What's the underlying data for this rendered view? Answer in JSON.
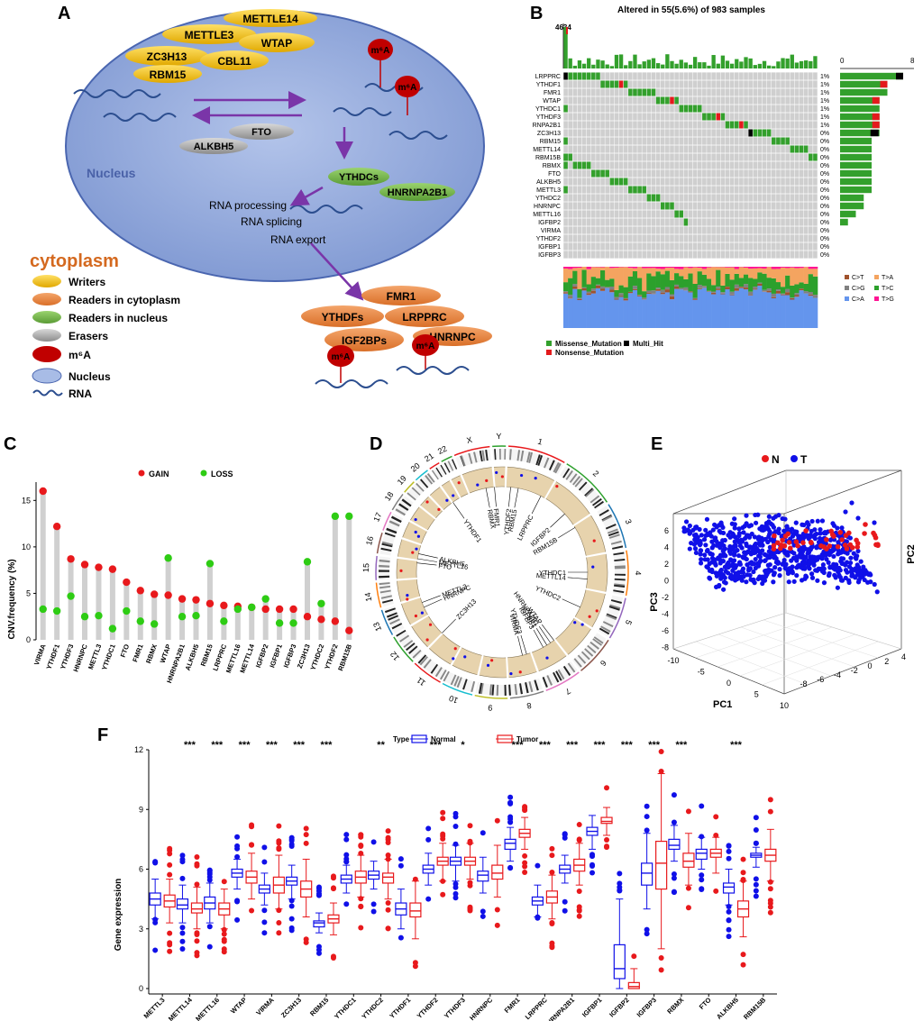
{
  "panels": {
    "a": "A",
    "b": "B",
    "c": "C",
    "d": "D",
    "e": "E",
    "f": "F"
  },
  "panel_a": {
    "writers_ovals": [
      "METTLE14",
      "METTLE3",
      "WTAP",
      "ZC3H13",
      "CBL11",
      "RBM15"
    ],
    "erasers_ovals": [
      "FTO",
      "ALKBH5"
    ],
    "nucleus_readers": [
      "YTHDCs",
      "HNRNPA2B1"
    ],
    "cyto_readers": [
      "FMR1",
      "YTHDFs",
      "LRPPRC",
      "IGF2BPs",
      "HNRNPC"
    ],
    "m6a": "m⁶A",
    "nucleus_label": "Nucleus",
    "cytoplasm_label": "cytoplasm",
    "processes": [
      "RNA processing",
      "RNA splicing",
      "RNA export"
    ],
    "legend": [
      "Writers",
      "Readers in cytoplasm",
      "Readers in nucleus",
      "Erasers",
      "m⁶A",
      "Nucleus",
      "RNA"
    ],
    "colors": {
      "writer": "#f2c010",
      "cyto": "#e8843c",
      "nuc_reader": "#6fb244",
      "eraser": "#a8a8a8",
      "m6a": "#c00000",
      "nucleus": "#8ea7d9",
      "arrow": "#7a35a8",
      "rna": "#2c4e8f",
      "cyto_label": "#d4691f"
    }
  },
  "panel_b": {
    "title": "Altered in 55(5.6%) of 983 samples",
    "top_axis_max": "4634",
    "right_axis": [
      "0",
      "8"
    ],
    "genes": [
      "LRPPRC",
      "YTHDF1",
      "FMR1",
      "WTAP",
      "YTHDC1",
      "YTHDF3",
      "RNPA2B1",
      "ZC3H13",
      "RBM15",
      "METTL14",
      "RBM15B",
      "RBMX",
      "FTO",
      "ALKBH5",
      "METTL3",
      "YTHDC2",
      "HNRNPC",
      "METTL16",
      "IGFBP2",
      "VIRMA",
      "YTHDF2",
      "IGFBP1",
      "IGFBP3"
    ],
    "percents": [
      "1%",
      "1%",
      "1%",
      "1%",
      "1%",
      "1%",
      "1%",
      "0%",
      "0%",
      "0%",
      "0%",
      "0%",
      "0%",
      "0%",
      "0%",
      "0%",
      "0%",
      "0%",
      "0%",
      "0%",
      "0%",
      "0%",
      "0%"
    ],
    "counts": [
      8,
      6,
      6,
      5,
      5,
      5,
      5,
      5,
      4,
      4,
      4,
      4,
      4,
      4,
      4,
      3,
      3,
      2,
      1,
      0,
      0,
      0,
      0
    ],
    "titv_legend": [
      "C>T",
      "T>A",
      "C>G",
      "T>C",
      "C>A",
      "T>G"
    ],
    "titv_colors": [
      "#a0522d",
      "#f4a460",
      "#808080",
      "#2ca02c",
      "#6495ed",
      "#ff1493"
    ],
    "mut_legend": [
      "Missense_Mutation",
      "Nonsense_Mutation",
      "Multi_Hit"
    ],
    "mut_colors": [
      "#33a02c",
      "#e31a1c",
      "#000000"
    ]
  },
  "panel_c": {
    "ylabel": "CNV.frequency (%)",
    "legend": [
      "GAIN",
      "LOSS"
    ],
    "colors": {
      "gain": "#e8191c",
      "loss": "#2ecc14"
    },
    "chart_data": {
      "type": "scatter",
      "categories": [
        "VIRMA",
        "YTHDF1",
        "YTHDF3",
        "HNRNPC",
        "METTL3",
        "YTHDC1",
        "FTO",
        "FMR1",
        "RBMX",
        "WTAP",
        "HNRNPA2B1",
        "ALKBH5",
        "RBM15",
        "LRPPRC",
        "METTL16",
        "METTL14",
        "IGFBP2",
        "IGFBP1",
        "IGFBP3",
        "ZC3H13",
        "YTHDC2",
        "YTHDF2",
        "RBM15B"
      ],
      "series": [
        {
          "name": "GAIN",
          "values": [
            16,
            12.2,
            8.7,
            8.1,
            7.8,
            7.6,
            6.2,
            5.3,
            4.9,
            4.8,
            4.4,
            4.3,
            3.9,
            3.7,
            3.6,
            3.5,
            3.3,
            3.3,
            3.3,
            2.5,
            2.2,
            2.0,
            1.0
          ]
        },
        {
          "name": "LOSS",
          "values": [
            3.3,
            3.1,
            4.7,
            2.5,
            2.6,
            1.2,
            3.1,
            2.0,
            1.7,
            8.8,
            2.5,
            2.6,
            8.2,
            2.0,
            3.3,
            3.5,
            4.4,
            1.8,
            1.8,
            8.4,
            3.9,
            13.3,
            13.3
          ]
        }
      ],
      "ylim": [
        0,
        16
      ],
      "yticks": [
        "0",
        "5",
        "10",
        "15"
      ]
    }
  },
  "panel_d": {
    "chroms": [
      "1",
      "2",
      "3",
      "4",
      "5",
      "6",
      "7",
      "8",
      "9",
      "10",
      "11",
      "12",
      "13",
      "14",
      "15",
      "16",
      "17",
      "18",
      "19",
      "20",
      "21",
      "22",
      "X",
      "Y"
    ],
    "genes": [
      "RBMX",
      "FMR1",
      "YTHDF2",
      "RBM15",
      "LRPPRC",
      "IGFBP2",
      "RBM15B",
      "YTHDC1",
      "METTL14",
      "YTHDC2",
      "WTAP",
      "HNRNPA2B1",
      "IGFBP1",
      "IGFBP3",
      "YTHDF3",
      "VIRMA",
      "ZC3H13",
      "HNRNPC",
      "METTL3",
      "FTO",
      "METTL16",
      "ALKBH5",
      "YTHDF1"
    ]
  },
  "panel_e": {
    "legend": [
      "N",
      "T"
    ],
    "colors": {
      "N": "#e8191c",
      "T": "#1010e8"
    },
    "xlabel": "PC1",
    "ylabel": "PC3",
    "zlabel": "PC2",
    "pc3_ticks": [
      "6",
      "4",
      "2",
      "0",
      "-2",
      "-4",
      "-6",
      "-8"
    ],
    "pc1_ticks": [
      "-10",
      "-5",
      "0",
      "5",
      "10"
    ],
    "pc2_ticks": [
      "4",
      "2",
      "0",
      "-2",
      "-4",
      "-6",
      "-8"
    ]
  },
  "panel_f": {
    "legend_title": "Type",
    "legend": [
      "Normal",
      "Tumor"
    ],
    "colors": {
      "normal": "#1010e8",
      "tumor": "#e8191c"
    },
    "ylabel": "Gene expression",
    "yticks": [
      "0",
      "3",
      "6",
      "9",
      "12"
    ],
    "chart_data": {
      "type": "box",
      "categories": [
        "METTL3",
        "METTL14",
        "METTL16",
        "WTAP",
        "VIRMA",
        "ZC3H13",
        "RBM15",
        "YTHDC1",
        "YTHDC2",
        "YTHDF1",
        "YTHDF2",
        "YTHDF3",
        "HNRNPC",
        "FMR1",
        "LRPPRC",
        "HNRNPA2B1",
        "IGFBP1",
        "IGFBP2",
        "IGFBP3",
        "RBMX",
        "FTO",
        "ALKBH5",
        "RBM15B"
      ],
      "significance": [
        "",
        "***",
        "***",
        "***",
        "***",
        "***",
        "***",
        "",
        "**",
        "",
        "***",
        "*",
        "",
        "***",
        "***",
        "***",
        "***",
        "***",
        "***",
        "***",
        "",
        "***",
        ""
      ],
      "normal": [
        [
          3.5,
          4.2,
          4.5,
          4.8,
          5.5
        ],
        [
          3.3,
          4.0,
          4.2,
          4.5,
          5.2
        ],
        [
          3.3,
          4.0,
          4.3,
          4.6,
          5.3
        ],
        [
          5.0,
          5.6,
          5.8,
          6.0,
          6.5
        ],
        [
          4.2,
          4.8,
          5.0,
          5.2,
          5.8
        ],
        [
          4.5,
          5.2,
          5.4,
          5.6,
          6.2
        ],
        [
          2.8,
          3.1,
          3.3,
          3.4,
          3.8
        ],
        [
          4.8,
          5.3,
          5.5,
          5.7,
          6.2
        ],
        [
          5.0,
          5.5,
          5.7,
          5.9,
          6.4
        ],
        [
          3.0,
          3.7,
          4.0,
          4.3,
          5.0
        ],
        [
          5.2,
          5.8,
          6.0,
          6.2,
          6.8
        ],
        [
          5.4,
          6.2,
          6.4,
          6.6,
          7.2
        ],
        [
          4.8,
          5.4,
          5.7,
          5.9,
          6.6
        ],
        [
          6.4,
          7.0,
          7.3,
          7.5,
          8.1
        ],
        [
          3.6,
          4.2,
          4.4,
          4.6,
          5.2
        ],
        [
          5.3,
          5.8,
          6.0,
          6.2,
          6.7
        ],
        [
          7.0,
          7.7,
          7.9,
          8.1,
          8.7
        ],
        [
          0,
          0.5,
          1.0,
          2.2,
          4.5
        ],
        [
          4.0,
          5.2,
          5.8,
          6.3,
          7.8
        ],
        [
          6.4,
          7.0,
          7.2,
          7.5,
          8.2
        ],
        [
          6.0,
          6.5,
          6.8,
          7.0,
          7.6
        ],
        [
          4.2,
          4.8,
          5.1,
          5.3,
          6.0
        ],
        [
          6.1,
          6.6,
          6.7,
          6.8,
          7.1
        ]
      ],
      "tumor": [
        [
          3.3,
          4.1,
          4.4,
          4.7,
          5.5
        ],
        [
          3.0,
          3.8,
          4.0,
          4.3,
          5.1
        ],
        [
          3.0,
          3.7,
          4.0,
          4.3,
          5.0
        ],
        [
          4.5,
          5.3,
          5.6,
          5.9,
          6.8
        ],
        [
          4.0,
          4.8,
          5.2,
          5.6,
          6.7
        ],
        [
          3.6,
          4.6,
          5.0,
          5.4,
          6.5
        ],
        [
          2.7,
          3.3,
          3.5,
          3.7,
          4.3
        ],
        [
          4.6,
          5.3,
          5.6,
          5.9,
          6.7
        ],
        [
          4.5,
          5.3,
          5.6,
          5.8,
          6.5
        ],
        [
          2.5,
          3.6,
          3.9,
          4.3,
          5.4
        ],
        [
          5.4,
          6.2,
          6.4,
          6.6,
          7.3
        ],
        [
          5.5,
          6.2,
          6.4,
          6.6,
          7.3
        ],
        [
          4.6,
          5.5,
          5.8,
          6.2,
          7.2
        ],
        [
          7.0,
          7.6,
          7.8,
          8.0,
          8.6
        ],
        [
          3.5,
          4.3,
          4.6,
          4.9,
          5.7
        ],
        [
          5.2,
          5.9,
          6.2,
          6.5,
          7.3
        ],
        [
          7.7,
          8.3,
          8.4,
          8.6,
          9.1
        ],
        [
          0,
          0,
          0.1,
          0.3,
          1.0
        ],
        [
          2.0,
          5.0,
          6.3,
          7.4,
          10.8
        ],
        [
          5.2,
          6.1,
          6.4,
          6.8,
          7.8
        ],
        [
          5.8,
          6.6,
          6.8,
          7.0,
          7.6
        ],
        [
          2.6,
          3.6,
          4.0,
          4.4,
          5.4
        ],
        [
          5.4,
          6.4,
          6.7,
          7.0,
          8.0
        ]
      ],
      "ylim": [
        0,
        12
      ]
    }
  }
}
